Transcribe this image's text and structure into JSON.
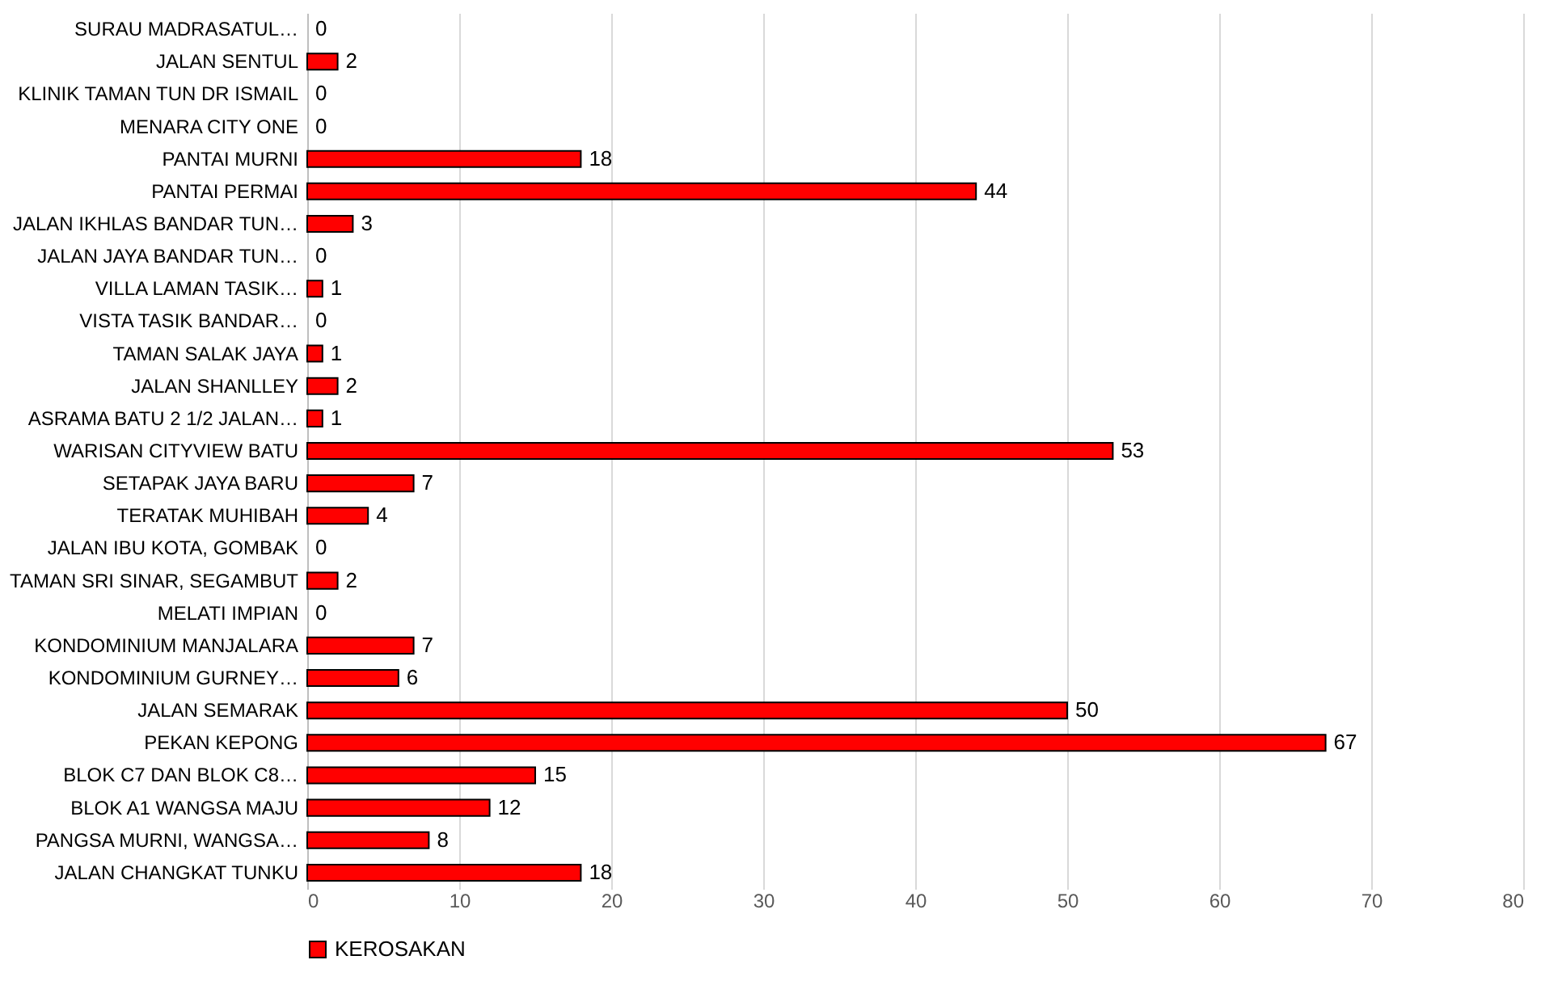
{
  "chart_data": {
    "type": "bar",
    "orientation": "horizontal",
    "categories": [
      "SURAU MADRASATUL…",
      "JALAN SENTUL",
      "KLINIK TAMAN TUN DR ISMAIL",
      "MENARA CITY ONE",
      "PANTAI MURNI",
      "PANTAI PERMAI",
      "JALAN IKHLAS BANDAR TUN…",
      "JALAN JAYA BANDAR TUN…",
      "VILLA LAMAN TASIK…",
      "VISTA TASIK BANDAR…",
      "TAMAN SALAK JAYA",
      "JALAN SHANLLEY",
      "ASRAMA BATU 2 1/2 JALAN…",
      "WARISAN CITYVIEW BATU",
      "SETAPAK JAYA BARU",
      "TERATAK MUHIBAH",
      "JALAN IBU KOTA, GOMBAK",
      "TAMAN SRI SINAR, SEGAMBUT",
      "MELATI IMPIAN",
      "KONDOMINIUM MANJALARA",
      "KONDOMINIUM GURNEY…",
      "JALAN SEMARAK",
      "PEKAN KEPONG",
      "BLOK C7 DAN BLOK C8…",
      "BLOK A1 WANGSA MAJU",
      "PANGSA MURNI, WANGSA…",
      "JALAN CHANGKAT TUNKU"
    ],
    "series": [
      {
        "name": "KEROSAKAN",
        "color": "#ff0000",
        "values": [
          0,
          2,
          0,
          0,
          18,
          44,
          3,
          0,
          1,
          0,
          1,
          2,
          1,
          53,
          7,
          4,
          0,
          2,
          0,
          7,
          6,
          50,
          67,
          15,
          12,
          8,
          18
        ]
      }
    ],
    "xlim": [
      0,
      80
    ],
    "xticks": [
      0,
      10,
      20,
      30,
      40,
      50,
      60,
      70,
      80
    ],
    "grid": "x",
    "legend": "bottom",
    "data_labels": true
  }
}
